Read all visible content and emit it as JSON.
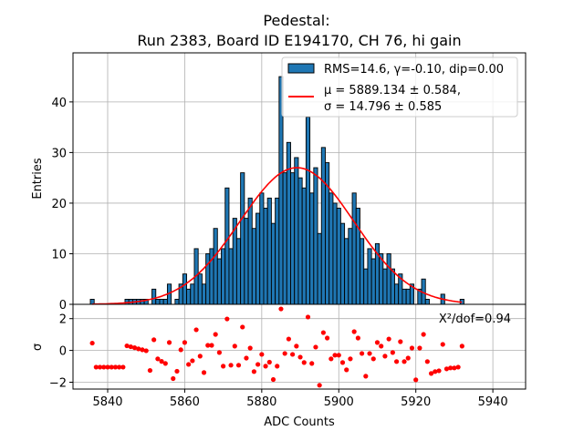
{
  "chart_data": [
    {
      "type": "bar",
      "title": "Pedestal:",
      "subtitle": "Run 2383, Board ID E194170, CH 76, hi gain",
      "xlabel": "ADC Counts",
      "ylabel": "Entries",
      "xlim": [
        5831,
        5948.5
      ],
      "ylim": [
        0,
        49.7
      ],
      "xticks": [
        5840,
        5860,
        5880,
        5900,
        5920,
        5940
      ],
      "yticks": [
        0,
        10,
        20,
        30,
        40
      ],
      "grid": true,
      "legend_position": "top-right",
      "bin_start": 5836,
      "bin_width": 1,
      "values": [
        1,
        0,
        0,
        0,
        0,
        0,
        0,
        0,
        0,
        1,
        1,
        1,
        1,
        1,
        1,
        0,
        3,
        1,
        1,
        1,
        4,
        0,
        1,
        4,
        6,
        3,
        4,
        11,
        6,
        4,
        10,
        11,
        15,
        9,
        11,
        23,
        11,
        17,
        13,
        26,
        17,
        21,
        15,
        18,
        22,
        19,
        21,
        16,
        21,
        45,
        26,
        32,
        26,
        29,
        25,
        23,
        37,
        22,
        27,
        14,
        31,
        28,
        22,
        20,
        19,
        16,
        13,
        15,
        22,
        19,
        13,
        7,
        11,
        9,
        12,
        10,
        7,
        10,
        7,
        4,
        6,
        3,
        3,
        4,
        0,
        3,
        5,
        1,
        0,
        0,
        0,
        2,
        0,
        0,
        0,
        0,
        1
      ],
      "series": [
        {
          "name": "RMS=14.6, γ=-0.10, dip=0.00",
          "kind": "histogram",
          "color": "#1f77b4"
        },
        {
          "name_line1": "μ = 5889.134 ± 0.584,",
          "name_line2": "σ = 14.796 ± 0.585",
          "kind": "gaussian-fit",
          "color": "#ff0000",
          "mu": 5889.134,
          "sigma": 14.796,
          "amplitude": 27.0,
          "range": [
            5836,
            5932
          ]
        }
      ]
    },
    {
      "type": "scatter",
      "xlabel": "ADC Counts",
      "ylabel": "σ",
      "xlim": [
        5831,
        5948.5
      ],
      "ylim": [
        -2.43,
        2.9
      ],
      "yticks": [
        -2,
        0,
        2
      ],
      "xticks": [
        5840,
        5860,
        5880,
        5900,
        5920,
        5940
      ],
      "grid": true,
      "annotation": "X²/dof=0.94",
      "color": "#ff0000",
      "x_start": 5836,
      "values": [
        0.46,
        -1.05,
        -1.05,
        -1.05,
        -1.05,
        -1.05,
        -1.05,
        -1.05,
        -1.05,
        0.29,
        0.23,
        0.17,
        0.1,
        0.04,
        -0.02,
        -1.26,
        0.67,
        -0.53,
        -0.69,
        -0.82,
        0.5,
        -1.77,
        -1.31,
        0.04,
        0.5,
        -0.88,
        -0.65,
        1.3,
        -0.36,
        -1.39,
        0.32,
        0.32,
        1.01,
        -0.13,
        -0.99,
        1.98,
        -0.93,
        0.27,
        -0.93,
        1.47,
        -0.48,
        0.15,
        -1.33,
        -0.88,
        -0.25,
        -0.99,
        -0.74,
        -1.83,
        -0.99,
        2.61,
        -0.19,
        0.72,
        -0.25,
        0.27,
        -0.42,
        -0.76,
        2.1,
        -0.82,
        0.21,
        -2.19,
        1.12,
        0.78,
        -0.53,
        -0.3,
        -0.3,
        -0.76,
        -1.22,
        -0.53,
        1.18,
        0.78,
        -0.19,
        -1.62,
        -0.19,
        -0.53,
        0.5,
        0.27,
        -0.36,
        0.72,
        -0.13,
        -0.7,
        0.55,
        -0.7,
        -0.48,
        0.15,
        -1.85,
        0.15,
        1.01,
        -0.7,
        -1.45,
        -1.33,
        -1.28,
        0.38,
        -1.16,
        -1.1,
        -1.1,
        -1.05,
        0.27
      ]
    }
  ]
}
